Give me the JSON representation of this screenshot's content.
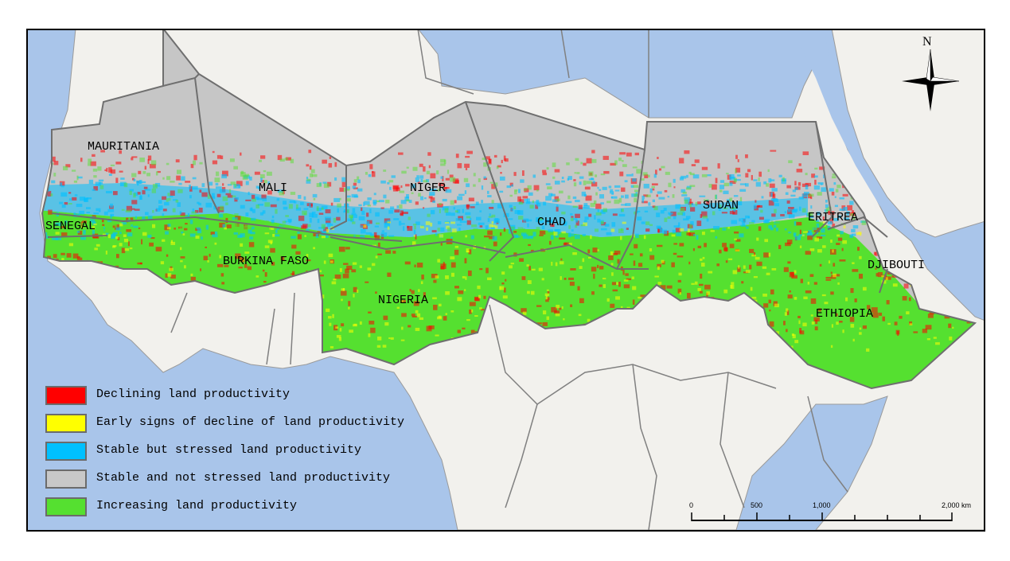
{
  "colors": {
    "ocean": "#a9c5ea",
    "land": "#f2f1ed",
    "sahel_grey": "#c6c6c6",
    "border": "#6f6f6f",
    "declining": "#ff0000",
    "early_decline": "#ffff00",
    "stable_stressed": "#00c0ff",
    "stable_not_stressed": "#c8c8c8",
    "increasing": "#55e030"
  },
  "country_labels": [
    {
      "id": "mauritania",
      "text": "MAURITANIA"
    },
    {
      "id": "mali",
      "text": "MALI"
    },
    {
      "id": "niger",
      "text": "NIGER"
    },
    {
      "id": "senegal",
      "text": "SENEGAL"
    },
    {
      "id": "chad",
      "text": "CHAD"
    },
    {
      "id": "sudan",
      "text": "SUDAN"
    },
    {
      "id": "eritrea",
      "text": "ERITREA"
    },
    {
      "id": "burkina-faso",
      "text": "BURKINA FASO"
    },
    {
      "id": "nigeria",
      "text": "NIGERIA"
    },
    {
      "id": "djibouti",
      "text": "DJIBOUTI"
    },
    {
      "id": "ethiopia",
      "text": "ETHIOPIA"
    }
  ],
  "legend": [
    {
      "label": "Declining land productivity",
      "color": "#ff0000"
    },
    {
      "label": "Early signs of decline of land productivity",
      "color": "#ffff00"
    },
    {
      "label": "Stable but stressed land productivity",
      "color": "#00c0ff"
    },
    {
      "label": "Stable and not stressed land productivity",
      "color": "#c8c8c8"
    },
    {
      "label": "Increasing land productivity",
      "color": "#55e030"
    }
  ],
  "north_arrow": {
    "label": "N",
    "icon": "compass-rose-icon"
  },
  "scale_bar": {
    "labels": [
      "0",
      "500",
      "1,000",
      "2,000 km"
    ]
  }
}
